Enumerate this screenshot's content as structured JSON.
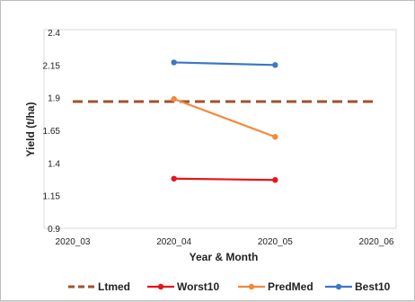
{
  "chart_data": {
    "type": "line",
    "title": "",
    "xlabel": "Year & Month",
    "ylabel": "Yield (t/ha)",
    "x": [
      "2020_03",
      "2020_04",
      "2020_05",
      "2020_06"
    ],
    "ylim": [
      0.9,
      2.4
    ],
    "yticks": [
      "0.9",
      "1.15",
      "1.4",
      "1.65",
      "1.9",
      "2.15",
      "2.4"
    ],
    "grid": false,
    "legend_position": "bottom",
    "series": [
      {
        "name": "Ltmed",
        "color": "#a0522d",
        "style": "dashed",
        "marker": "none",
        "x": [
          "2020_03",
          "2020_06"
        ],
        "values": [
          1.87,
          1.87
        ]
      },
      {
        "name": "Worst10",
        "color": "#e8141c",
        "style": "solid",
        "marker": "circle",
        "x": [
          "2020_04",
          "2020_05"
        ],
        "values": [
          1.28,
          1.27
        ]
      },
      {
        "name": "PredMed",
        "color": "#f5883a",
        "style": "solid",
        "marker": "circle",
        "x": [
          "2020_04",
          "2020_05"
        ],
        "values": [
          1.89,
          1.6
        ]
      },
      {
        "name": "Best10",
        "color": "#3b78c4",
        "style": "solid",
        "marker": "circle",
        "x": [
          "2020_04",
          "2020_05"
        ],
        "values": [
          2.17,
          2.15
        ]
      }
    ]
  }
}
